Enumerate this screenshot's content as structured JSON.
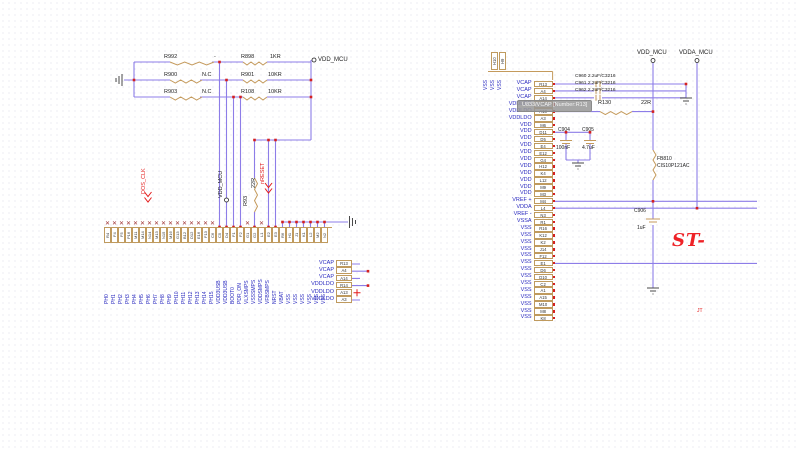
{
  "colors": {
    "wire": "#8d7de8",
    "symbol_outline": "#c49a5c",
    "pin_text_blue": "#2b2bc0",
    "net_red": "#e31b1b",
    "junction_red": "#d42020",
    "logo_red": "#ee2227"
  },
  "left_block": {
    "resistors_left": [
      {
        "ref": "R992",
        "value": "-"
      },
      {
        "ref": "R900",
        "value": "N.C"
      },
      {
        "ref": "R903",
        "value": "N.C"
      }
    ],
    "resistors_right": [
      {
        "ref": "R898",
        "value": "1KR"
      },
      {
        "ref": "R901",
        "value": "10KR"
      },
      {
        "ref": "R108",
        "value": "10KR"
      }
    ],
    "series_resistor": {
      "ref": "R93",
      "value": "22R"
    },
    "port": "VDD_MCU",
    "net_labels": {
      "clock": "DOS_CLK",
      "power": "VDD_MCU",
      "reset": "nRESET"
    },
    "bottom_pins": [
      {
        "name": "PH0",
        "num": "R4",
        "nc": true
      },
      {
        "name": "PH1",
        "num": "F4",
        "nc": true
      },
      {
        "name": "PH2",
        "num": "F5",
        "nc": true
      },
      {
        "name": "PH3",
        "num": "P16",
        "nc": true
      },
      {
        "name": "PH4",
        "num": "M11",
        "nc": true
      },
      {
        "name": "PH5",
        "num": "M14",
        "nc": true
      },
      {
        "name": "PH6",
        "num": "N14",
        "nc": true
      },
      {
        "name": "PH7",
        "num": "M13",
        "nc": true
      },
      {
        "name": "PH8",
        "num": "N15",
        "nc": true
      },
      {
        "name": "PH9",
        "num": "M16",
        "nc": true
      },
      {
        "name": "PH10",
        "num": "G13",
        "nc": true
      },
      {
        "name": "PH11",
        "num": "B12",
        "nc": true
      },
      {
        "name": "PH12",
        "num": "D12",
        "nc": true
      },
      {
        "name": "PH13",
        "num": "E16",
        "nc": true
      },
      {
        "name": "PH14",
        "num": "F13",
        "nc": true
      },
      {
        "name": "PH15",
        "num": "C6",
        "nc": true
      },
      {
        "name": "VDD3USB",
        "num": "C5",
        "nc": false
      },
      {
        "name": "VDD3USB",
        "num": "D4",
        "nc": false
      },
      {
        "name": "BOOT0",
        "num": "F1",
        "nc": false
      },
      {
        "name": "PDR_ON",
        "num": "F2",
        "nc": false
      },
      {
        "name": "VLXSMPS",
        "num": "G1",
        "nc": true
      },
      {
        "name": "VSSSMPS",
        "num": "G2",
        "nc": false
      },
      {
        "name": "VDDSMPS",
        "num": "L1",
        "nc": true
      },
      {
        "name": "VFBSMPS",
        "num": "E2",
        "nc": false
      },
      {
        "name": "NRST",
        "num": "E3",
        "nc": false
      },
      {
        "name": "VBAT",
        "num": "R6",
        "nc": false
      },
      {
        "name": "VSS",
        "num": "H1",
        "nc": false
      },
      {
        "name": "VSS",
        "num": "J1",
        "nc": false
      },
      {
        "name": "VSS",
        "num": "K1",
        "nc": false
      },
      {
        "name": "VSS",
        "num": "L2",
        "nc": false
      },
      {
        "name": "VSS",
        "num": "M2",
        "nc": false
      },
      {
        "name": "VSS",
        "num": "N2",
        "nc": false
      }
    ],
    "right_pins": [
      {
        "name": "VCAP",
        "num": "R13"
      },
      {
        "name": "VCAP",
        "num": "A4"
      },
      {
        "name": "VCAP",
        "num": "A14"
      },
      {
        "name": "VDDLDO",
        "num": "R14"
      },
      {
        "name": "VDDLDO",
        "num": "A13"
      },
      {
        "name": "VDDLDO",
        "num": "A3"
      }
    ]
  },
  "right_block": {
    "ports": {
      "vdd": "VDD_MCU",
      "vdda": "VDDA_MCU"
    },
    "top_pins": [
      {
        "name": "VSS",
        "num": "H10"
      },
      {
        "name": "VSS",
        "num": "H9"
      }
    ],
    "top_extra_label": "VSS",
    "pins": [
      {
        "name": "VCAP",
        "num": "R13"
      },
      {
        "name": "VCAP",
        "num": "A4"
      },
      {
        "name": "VCAP",
        "num": "A14"
      },
      {
        "name": "VDDLDO",
        "num": "R14"
      },
      {
        "name": "VDDLDO",
        "num": "A13"
      },
      {
        "name": "VDDLDO",
        "num": "A3"
      },
      {
        "name": "VDD",
        "num": "M6"
      },
      {
        "name": "VDD",
        "num": "D11"
      },
      {
        "name": "VDD",
        "num": "D5"
      },
      {
        "name": "VDD",
        "num": "E4"
      },
      {
        "name": "VDD",
        "num": "E12"
      },
      {
        "name": "VDD",
        "num": "G4"
      },
      {
        "name": "VDD",
        "num": "H12"
      },
      {
        "name": "VDD",
        "num": "K4"
      },
      {
        "name": "VDD",
        "num": "L12"
      },
      {
        "name": "VDD",
        "num": "M9"
      },
      {
        "name": "VDD",
        "num": "M3"
      },
      {
        "name": "VREF +",
        "num": "M4"
      },
      {
        "name": "VDDA",
        "num": "L4"
      },
      {
        "name": "VREF -",
        "num": "N3"
      },
      {
        "name": "VSSA",
        "num": "R1"
      },
      {
        "name": "VSS",
        "num": "R16"
      },
      {
        "name": "VSS",
        "num": "K12"
      },
      {
        "name": "VSS",
        "num": "K2"
      },
      {
        "name": "VSS",
        "num": "J14"
      },
      {
        "name": "VSS",
        "num": "F12"
      },
      {
        "name": "VSS",
        "num": "E1"
      },
      {
        "name": "VSS",
        "num": "D6"
      },
      {
        "name": "VSS",
        "num": "D10"
      },
      {
        "name": "VSS",
        "num": "C2"
      },
      {
        "name": "VSS",
        "num": "A1"
      },
      {
        "name": "VSS",
        "num": "A15"
      },
      {
        "name": "VSS",
        "num": "M10"
      },
      {
        "name": "VSS",
        "num": "M8"
      },
      {
        "name": "VSS",
        "num": "K8"
      }
    ],
    "decoupling_caps": [
      {
        "ref": "C960",
        "value": "2.2uF/C3216"
      },
      {
        "ref": "C961",
        "value": "2.2uF/C3216"
      },
      {
        "ref": "C962",
        "value": "2.2uF/C3216"
      }
    ],
    "tooltip": "U833/VCAP [Number:R13]",
    "r130": {
      "ref": "R130",
      "value": "22R"
    },
    "c904": {
      "ref": "C904",
      "value": "100nF"
    },
    "c905": {
      "ref": "C905",
      "value": "4.7uF"
    },
    "ferrite": {
      "ref": "FB810",
      "value": "CIS10P121AC"
    },
    "c906": {
      "ref": "C906",
      "value": "1uF"
    }
  },
  "branding": {
    "logo": "ST-",
    "note": "JT"
  }
}
